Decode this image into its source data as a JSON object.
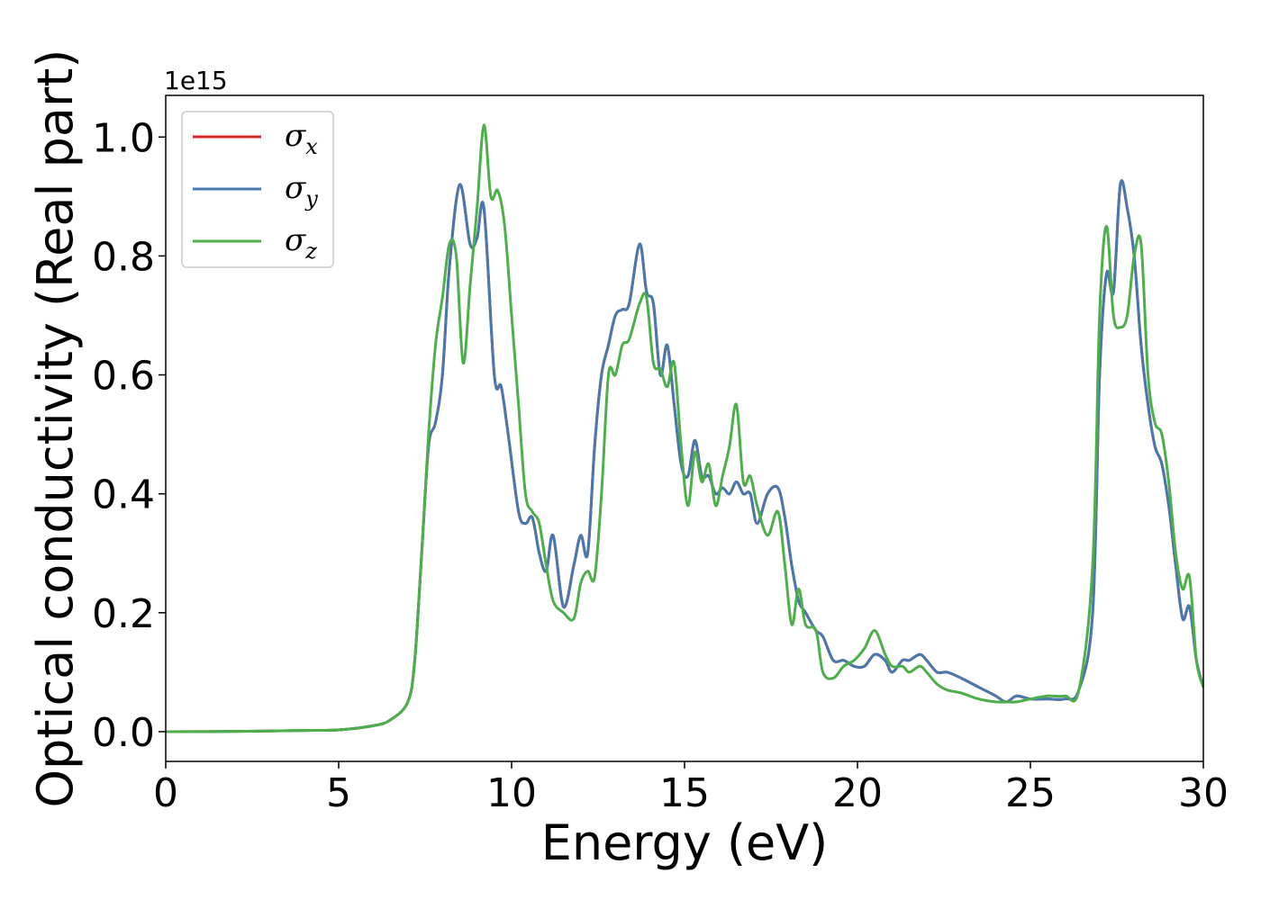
{
  "chart_data": {
    "type": "line",
    "xlabel": "Energy (eV)",
    "ylabel": "Optical conductivity (Real part)",
    "y_offset_label": "1e15",
    "xlim": [
      0,
      30
    ],
    "ylim": [
      -0.05,
      1.07
    ],
    "x_ticks": [
      0,
      5,
      10,
      15,
      20,
      25,
      30
    ],
    "x_tick_labels": [
      "0",
      "5",
      "10",
      "15",
      "20",
      "25",
      "30"
    ],
    "y_ticks": [
      0.0,
      0.2,
      0.4,
      0.6,
      0.8,
      1.0
    ],
    "y_tick_labels": [
      "0.0",
      "0.2",
      "0.4",
      "0.6",
      "0.8",
      "1.0"
    ],
    "grid": false,
    "legend_position": "top-left",
    "series": [
      {
        "name": "σx",
        "symbol": "σ",
        "subscript": "x",
        "color": "#d62728",
        "x": [
          0,
          2,
          4,
          5,
          6,
          6.5,
          7,
          7.2,
          7.4,
          7.6,
          7.8,
          8.0,
          8.2,
          8.5,
          8.8,
          9.0,
          9.2,
          9.5,
          9.7,
          9.9,
          10.2,
          10.4,
          10.6,
          10.8,
          11.0,
          11.2,
          11.5,
          11.8,
          12.0,
          12.2,
          12.4,
          12.6,
          12.8,
          13.0,
          13.2,
          13.4,
          13.7,
          13.9,
          14.1,
          14.3,
          14.5,
          14.7,
          14.9,
          15.1,
          15.3,
          15.5,
          15.7,
          15.9,
          16.1,
          16.3,
          16.5,
          16.7,
          16.9,
          17.1,
          17.4,
          17.7,
          17.9,
          18.1,
          18.3,
          18.5,
          18.8,
          19.0,
          19.3,
          19.6,
          19.9,
          20.2,
          20.5,
          20.8,
          21.0,
          21.3,
          21.5,
          21.8,
          22.0,
          22.3,
          22.6,
          23.0,
          23.5,
          24.0,
          24.3,
          24.6,
          25.0,
          25.5,
          26.0,
          26.4,
          26.8,
          27.0,
          27.2,
          27.4,
          27.6,
          27.8,
          28.0,
          28.2,
          28.4,
          28.6,
          28.8,
          29.0,
          29.2,
          29.4,
          29.6,
          29.8,
          30.0
        ],
        "y": [
          0.0,
          0.0005,
          0.002,
          0.003,
          0.01,
          0.02,
          0.05,
          0.12,
          0.3,
          0.48,
          0.52,
          0.6,
          0.78,
          0.92,
          0.82,
          0.83,
          0.88,
          0.6,
          0.58,
          0.5,
          0.37,
          0.35,
          0.36,
          0.3,
          0.27,
          0.33,
          0.21,
          0.28,
          0.33,
          0.3,
          0.48,
          0.6,
          0.65,
          0.7,
          0.71,
          0.72,
          0.82,
          0.74,
          0.72,
          0.6,
          0.65,
          0.55,
          0.45,
          0.43,
          0.49,
          0.43,
          0.43,
          0.4,
          0.41,
          0.4,
          0.42,
          0.4,
          0.4,
          0.35,
          0.4,
          0.41,
          0.36,
          0.28,
          0.22,
          0.2,
          0.17,
          0.16,
          0.12,
          0.12,
          0.11,
          0.11,
          0.13,
          0.12,
          0.1,
          0.12,
          0.12,
          0.13,
          0.12,
          0.1,
          0.1,
          0.09,
          0.075,
          0.06,
          0.05,
          0.06,
          0.055,
          0.055,
          0.055,
          0.07,
          0.2,
          0.6,
          0.77,
          0.74,
          0.92,
          0.88,
          0.8,
          0.65,
          0.55,
          0.48,
          0.45,
          0.38,
          0.28,
          0.19,
          0.21,
          0.12,
          0.075
        ]
      },
      {
        "name": "σy",
        "symbol": "σ",
        "subscript": "y",
        "color": "#4878b0",
        "x": [
          0,
          2,
          4,
          5,
          6,
          6.5,
          7,
          7.2,
          7.4,
          7.6,
          7.8,
          8.0,
          8.2,
          8.5,
          8.8,
          9.0,
          9.2,
          9.5,
          9.7,
          9.9,
          10.2,
          10.4,
          10.6,
          10.8,
          11.0,
          11.2,
          11.5,
          11.8,
          12.0,
          12.2,
          12.4,
          12.6,
          12.8,
          13.0,
          13.2,
          13.4,
          13.7,
          13.9,
          14.1,
          14.3,
          14.5,
          14.7,
          14.9,
          15.1,
          15.3,
          15.5,
          15.7,
          15.9,
          16.1,
          16.3,
          16.5,
          16.7,
          16.9,
          17.1,
          17.4,
          17.7,
          17.9,
          18.1,
          18.3,
          18.5,
          18.8,
          19.0,
          19.3,
          19.6,
          19.9,
          20.2,
          20.5,
          20.8,
          21.0,
          21.3,
          21.5,
          21.8,
          22.0,
          22.3,
          22.6,
          23.0,
          23.5,
          24.0,
          24.3,
          24.6,
          25.0,
          25.5,
          26.0,
          26.4,
          26.8,
          27.0,
          27.2,
          27.4,
          27.6,
          27.8,
          28.0,
          28.2,
          28.4,
          28.6,
          28.8,
          29.0,
          29.2,
          29.4,
          29.6,
          29.8,
          30.0
        ],
        "y": [
          0.0,
          0.0005,
          0.002,
          0.003,
          0.01,
          0.02,
          0.05,
          0.12,
          0.3,
          0.48,
          0.52,
          0.6,
          0.78,
          0.92,
          0.82,
          0.83,
          0.88,
          0.6,
          0.58,
          0.5,
          0.37,
          0.35,
          0.36,
          0.3,
          0.27,
          0.33,
          0.21,
          0.28,
          0.33,
          0.3,
          0.48,
          0.6,
          0.65,
          0.7,
          0.71,
          0.72,
          0.82,
          0.74,
          0.72,
          0.6,
          0.65,
          0.55,
          0.45,
          0.43,
          0.49,
          0.43,
          0.43,
          0.4,
          0.41,
          0.4,
          0.42,
          0.4,
          0.4,
          0.35,
          0.4,
          0.41,
          0.36,
          0.28,
          0.22,
          0.2,
          0.17,
          0.16,
          0.12,
          0.12,
          0.11,
          0.11,
          0.13,
          0.12,
          0.1,
          0.12,
          0.12,
          0.13,
          0.12,
          0.1,
          0.1,
          0.09,
          0.075,
          0.06,
          0.05,
          0.06,
          0.055,
          0.055,
          0.055,
          0.07,
          0.2,
          0.6,
          0.77,
          0.74,
          0.92,
          0.88,
          0.8,
          0.65,
          0.55,
          0.48,
          0.45,
          0.38,
          0.28,
          0.19,
          0.21,
          0.12,
          0.075
        ]
      },
      {
        "name": "σz",
        "symbol": "σ",
        "subscript": "z",
        "color": "#4daf4a",
        "x": [
          0,
          2,
          4,
          5,
          6,
          6.5,
          7,
          7.2,
          7.4,
          7.6,
          7.8,
          8.0,
          8.2,
          8.4,
          8.6,
          8.8,
          9.0,
          9.2,
          9.4,
          9.6,
          9.8,
          10.0,
          10.2,
          10.4,
          10.6,
          10.8,
          11.0,
          11.2,
          11.5,
          11.8,
          12.0,
          12.2,
          12.4,
          12.6,
          12.8,
          13.0,
          13.2,
          13.4,
          13.7,
          13.9,
          14.1,
          14.3,
          14.5,
          14.7,
          14.9,
          15.1,
          15.3,
          15.5,
          15.7,
          15.9,
          16.1,
          16.3,
          16.5,
          16.7,
          16.9,
          17.1,
          17.4,
          17.7,
          17.9,
          18.1,
          18.3,
          18.5,
          18.8,
          19.0,
          19.3,
          19.6,
          19.9,
          20.2,
          20.5,
          20.8,
          21.0,
          21.3,
          21.5,
          21.8,
          22.0,
          22.3,
          22.6,
          23.0,
          23.5,
          24.0,
          24.3,
          24.6,
          25.0,
          25.5,
          26.0,
          26.4,
          26.8,
          27.0,
          27.2,
          27.4,
          27.6,
          27.8,
          28.0,
          28.2,
          28.4,
          28.6,
          28.8,
          29.0,
          29.2,
          29.4,
          29.6,
          29.8,
          30.0
        ],
        "y": [
          0.0,
          0.0005,
          0.002,
          0.003,
          0.01,
          0.02,
          0.05,
          0.12,
          0.3,
          0.5,
          0.65,
          0.73,
          0.82,
          0.8,
          0.62,
          0.75,
          0.88,
          1.02,
          0.9,
          0.91,
          0.85,
          0.7,
          0.55,
          0.4,
          0.37,
          0.35,
          0.28,
          0.22,
          0.2,
          0.19,
          0.25,
          0.27,
          0.26,
          0.4,
          0.6,
          0.6,
          0.65,
          0.66,
          0.72,
          0.73,
          0.62,
          0.61,
          0.58,
          0.62,
          0.48,
          0.38,
          0.47,
          0.42,
          0.45,
          0.38,
          0.43,
          0.48,
          0.55,
          0.42,
          0.43,
          0.38,
          0.33,
          0.37,
          0.28,
          0.18,
          0.24,
          0.18,
          0.17,
          0.1,
          0.09,
          0.11,
          0.12,
          0.14,
          0.17,
          0.13,
          0.11,
          0.11,
          0.1,
          0.11,
          0.1,
          0.08,
          0.07,
          0.065,
          0.055,
          0.05,
          0.05,
          0.05,
          0.055,
          0.06,
          0.06,
          0.07,
          0.28,
          0.7,
          0.85,
          0.7,
          0.68,
          0.7,
          0.8,
          0.82,
          0.6,
          0.52,
          0.5,
          0.42,
          0.3,
          0.24,
          0.26,
          0.12,
          0.075
        ]
      }
    ]
  }
}
